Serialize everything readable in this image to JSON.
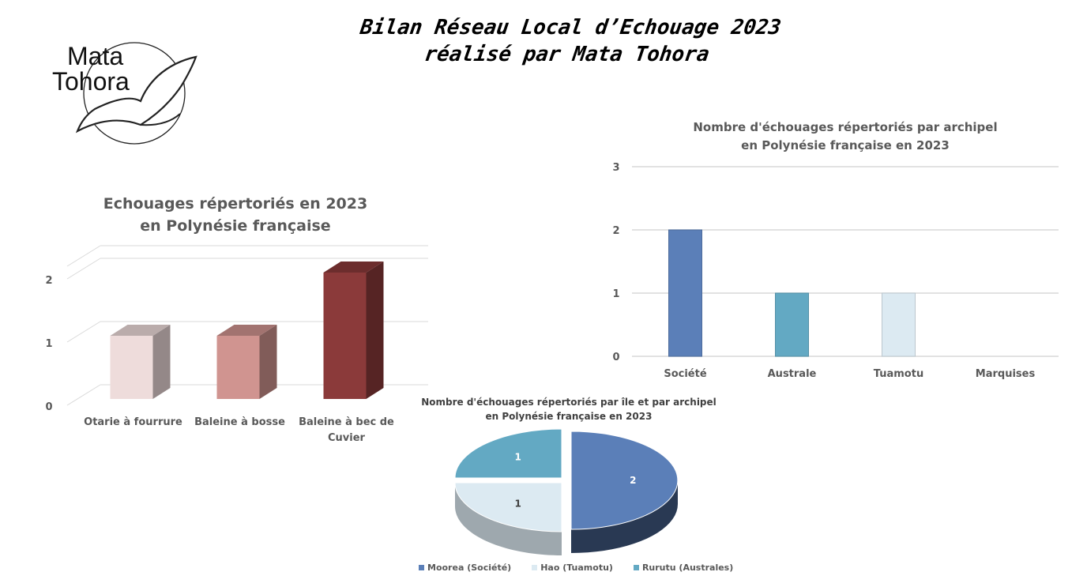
{
  "page": {
    "title_line1": "Bilan Réseau Local d’Echouage 2023",
    "title_line2": "réalisé par Mata Tohora",
    "logo_line1": "Mata",
    "logo_line2": "Tohora"
  },
  "chart_data": [
    {
      "type": "bar",
      "style": "3d-column",
      "title_line1": "Echouages répertoriés en 2023",
      "title_line2": "en Polynésie française",
      "categories": [
        "Otarie à fourrure",
        "Baleine à bosse",
        "Baleine à bec de Cuvier"
      ],
      "category_lines": [
        [
          "Otarie à fourrure"
        ],
        [
          "Baleine à bosse"
        ],
        [
          "Baleine à bec de",
          "Cuvier"
        ]
      ],
      "values": [
        1,
        1,
        2
      ],
      "colors": [
        "#eedcdb",
        "#d09490",
        "#8b3a3a"
      ],
      "yticks": [
        0,
        1,
        2
      ],
      "ylim": [
        0,
        2.2
      ],
      "grid": true
    },
    {
      "type": "bar",
      "title_line1": "Nombre d'échouages répertoriés par archipel",
      "title_line2": "en Polynésie française en 2023",
      "categories": [
        "Société",
        "Australe",
        "Tuamotu",
        "Marquises"
      ],
      "values": [
        2,
        1,
        1,
        0
      ],
      "colors": [
        "#5b7fb8",
        "#63a9c3",
        "#dceaf2",
        "#dceaf2"
      ],
      "yticks": [
        0,
        1,
        2,
        3
      ],
      "ylim": [
        0,
        3
      ],
      "grid": true
    },
    {
      "type": "pie",
      "style": "3d-exploded",
      "title_line1": "Nombre d'échouages répertoriés par île et par archipel",
      "title_line2": "en Polynésie française en 2023",
      "labels": [
        "Moorea (Société)",
        "Hao (Tuamotu)",
        "Rurutu (Australes)"
      ],
      "values": [
        2,
        1,
        1
      ],
      "colors": [
        "#5b7fb8",
        "#dceaf2",
        "#63a9c3"
      ],
      "legend_position": "bottom"
    }
  ]
}
